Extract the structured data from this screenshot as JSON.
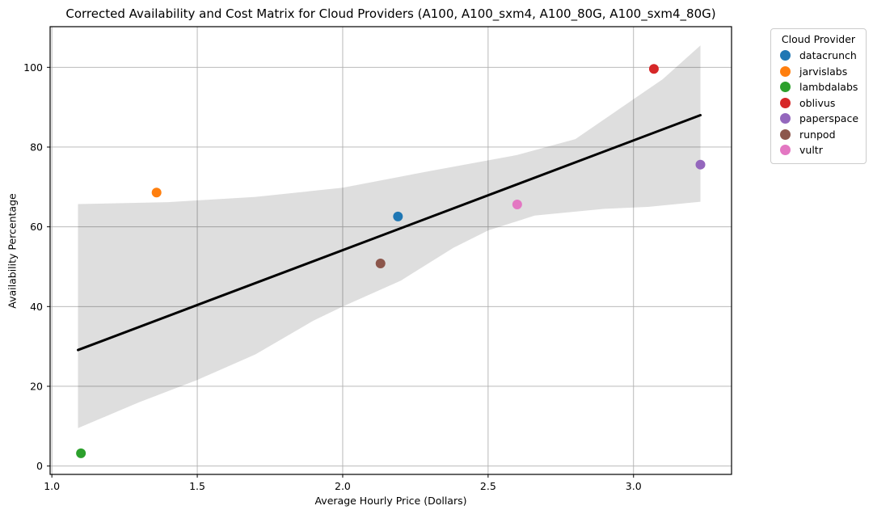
{
  "chart_data": {
    "type": "scatter",
    "title": "Corrected Availability and Cost Matrix for Cloud Providers (A100, A100_sxm4, A100_80G, A100_sxm4_80G)",
    "xlabel": "Average Hourly Price (Dollars)",
    "ylabel": "Availability Percentage",
    "xlim": [
      0.994,
      3.337
    ],
    "ylim": [
      -2.1,
      110.2
    ],
    "xticks": {
      "values": [
        1.0,
        1.5,
        2.0,
        2.5,
        3.0
      ],
      "labels": [
        "1.0",
        "1.5",
        "2.0",
        "2.5",
        "3.0"
      ]
    },
    "yticks": {
      "values": [
        0,
        20,
        40,
        60,
        80,
        100
      ],
      "labels": [
        "0",
        "20",
        "40",
        "60",
        "80",
        "100"
      ]
    },
    "grid": true,
    "grid_color": "#b0b0b0",
    "spine_color": "#000000",
    "background": "#ffffff",
    "marker_radius": 6,
    "legend": {
      "title": "Cloud Provider",
      "position": "outside-right",
      "entries": [
        {
          "label": "datacrunch",
          "color": "#1f77b4"
        },
        {
          "label": "jarvislabs",
          "color": "#ff7f0e"
        },
        {
          "label": "lambdalabs",
          "color": "#2ca02c"
        },
        {
          "label": "oblivus",
          "color": "#d62728"
        },
        {
          "label": "paperspace",
          "color": "#9467bd"
        },
        {
          "label": "runpod",
          "color": "#8c564b"
        },
        {
          "label": "vultr",
          "color": "#e377c2"
        }
      ]
    },
    "series": [
      {
        "name": "datacrunch",
        "color": "#1f77b4",
        "points": [
          [
            2.19,
            62.6
          ]
        ]
      },
      {
        "name": "jarvislabs",
        "color": "#ff7f0e",
        "points": [
          [
            1.36,
            68.6
          ]
        ]
      },
      {
        "name": "lambdalabs",
        "color": "#2ca02c",
        "points": [
          [
            1.1,
            3.2
          ]
        ]
      },
      {
        "name": "oblivus",
        "color": "#d62728",
        "points": [
          [
            3.07,
            99.6
          ]
        ]
      },
      {
        "name": "paperspace",
        "color": "#9467bd",
        "points": [
          [
            3.23,
            75.6
          ]
        ]
      },
      {
        "name": "runpod",
        "color": "#8c564b",
        "points": [
          [
            2.13,
            50.8
          ]
        ]
      },
      {
        "name": "vultr",
        "color": "#e377c2",
        "points": [
          [
            2.6,
            65.6
          ]
        ]
      }
    ],
    "regression_line": {
      "color": "#000000",
      "width": 3,
      "x": [
        1.09,
        3.23
      ],
      "y": [
        29.1,
        88.0
      ]
    },
    "confidence_band": {
      "color": "#000000",
      "opacity": 0.13,
      "upper": [
        [
          1.09,
          65.7
        ],
        [
          1.4,
          66.2
        ],
        [
          1.7,
          67.5
        ],
        [
          2.0,
          69.8
        ],
        [
          2.3,
          74.0
        ],
        [
          2.6,
          78.0
        ],
        [
          2.8,
          82.0
        ],
        [
          3.0,
          92.0
        ],
        [
          3.1,
          97.0
        ],
        [
          3.23,
          105.5
        ]
      ],
      "lower": [
        [
          1.09,
          9.5
        ],
        [
          1.3,
          16.0
        ],
        [
          1.5,
          21.6
        ],
        [
          1.7,
          28.0
        ],
        [
          1.9,
          36.5
        ],
        [
          2.0,
          40.0
        ],
        [
          2.2,
          46.5
        ],
        [
          2.38,
          54.7
        ],
        [
          2.5,
          59.1
        ],
        [
          2.66,
          62.8
        ],
        [
          2.9,
          64.5
        ],
        [
          3.05,
          65.0
        ],
        [
          3.23,
          66.3
        ]
      ]
    }
  }
}
